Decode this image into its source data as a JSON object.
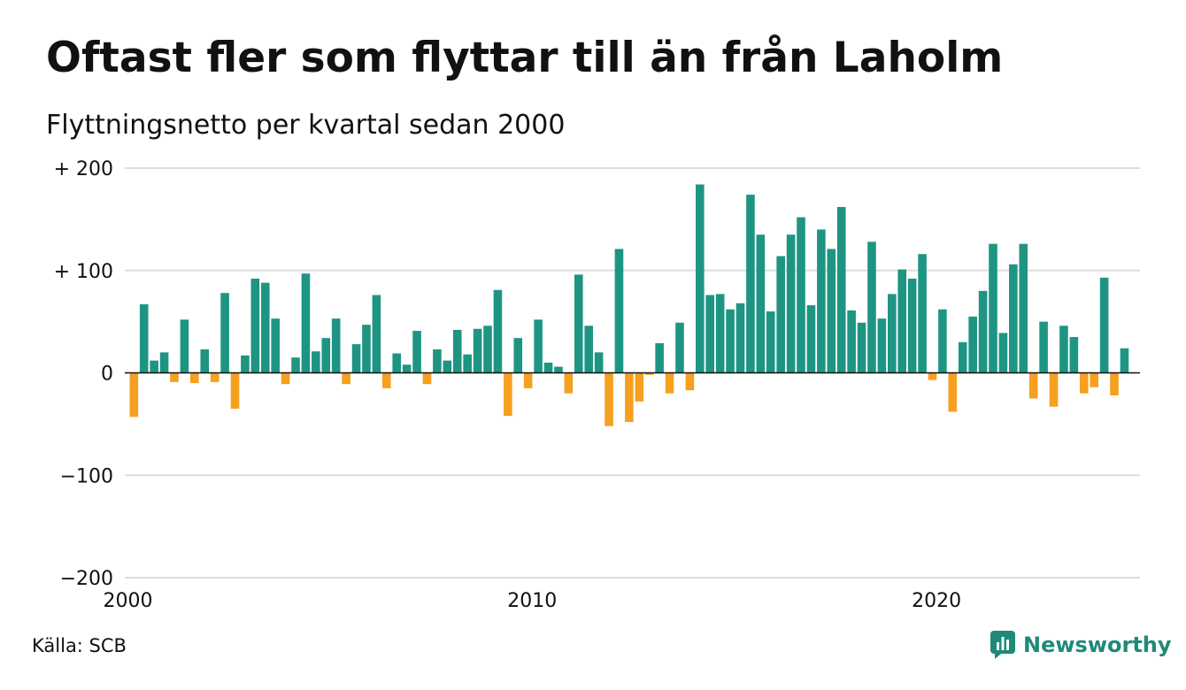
{
  "title": "Oftast fler som flyttar till än från Laholm",
  "subtitle": "Flyttningsnetto per kvartal sedan 2000",
  "source": "Källa: SCB",
  "brand": "Newsworthy",
  "colors": {
    "positive": "#1e9582",
    "negative": "#f5a020",
    "grid": "#dddddd",
    "brand": "#1e8a77"
  },
  "chart_data": {
    "type": "bar",
    "ylim": [
      -200,
      200
    ],
    "yticks": [
      {
        "value": 200,
        "label": "+ 200"
      },
      {
        "value": 100,
        "label": "+ 100"
      },
      {
        "value": 0,
        "label": "0"
      },
      {
        "value": -100,
        "label": "−100"
      },
      {
        "value": -200,
        "label": "−200"
      }
    ],
    "xticks": [
      "2000",
      "2010",
      "2020"
    ],
    "start_year": 2000,
    "values": [
      -43,
      67,
      12,
      20,
      -9,
      52,
      -10,
      23,
      -9,
      78,
      -35,
      17,
      92,
      88,
      53,
      -11,
      15,
      97,
      21,
      34,
      53,
      -11,
      28,
      47,
      76,
      -15,
      19,
      8,
      41,
      -11,
      23,
      12,
      42,
      18,
      43,
      46,
      81,
      -42,
      34,
      -15,
      52,
      10,
      6,
      -20,
      96,
      46,
      20,
      -52,
      121,
      -48,
      -28,
      -2,
      29,
      -20,
      49,
      -17,
      184,
      76,
      77,
      62,
      68,
      174,
      135,
      60,
      114,
      135,
      152,
      66,
      140,
      121,
      162,
      61,
      49,
      128,
      53,
      77,
      101,
      92,
      116,
      -7,
      62,
      -38,
      30,
      55,
      80,
      126,
      39,
      106,
      126,
      -25,
      50,
      -33,
      46,
      35,
      -20,
      -14,
      93,
      -22,
      24
    ]
  }
}
